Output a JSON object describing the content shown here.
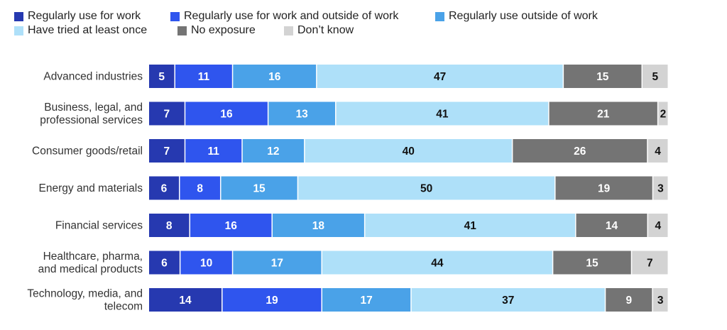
{
  "chart_data": {
    "type": "bar",
    "orientation": "horizontal",
    "stacked": true,
    "legend_position": "top-left",
    "categories": [
      "Advanced industries",
      "Business, legal, and\nprofessional services",
      "Consumer goods/retail",
      "Energy and materials",
      "Financial services",
      "Healthcare, pharma,\nand medical products",
      "Technology, media, and\ntelecom"
    ],
    "series": [
      {
        "name": "Regularly use for work",
        "color": "#2639b0",
        "label_color": "#ffffff",
        "values": [
          5,
          7,
          7,
          6,
          8,
          6,
          14
        ]
      },
      {
        "name": "Regularly use for work and outside of work",
        "color": "#2f55ee",
        "label_color": "#ffffff",
        "values": [
          11,
          16,
          11,
          8,
          16,
          10,
          19
        ]
      },
      {
        "name": "Regularly use outside of work",
        "color": "#4aa2e8",
        "label_color": "#ffffff",
        "values": [
          16,
          13,
          12,
          15,
          18,
          17,
          17
        ]
      },
      {
        "name": "Have tried at least once",
        "color": "#aee0f9",
        "label_color": "#111111",
        "values": [
          47,
          41,
          40,
          50,
          41,
          44,
          37
        ]
      },
      {
        "name": "No exposure",
        "color": "#747474",
        "label_color": "#ffffff",
        "values": [
          15,
          21,
          26,
          19,
          14,
          15,
          9
        ]
      },
      {
        "name": "Don’t know",
        "color": "#d3d3d3",
        "label_color": "#111111",
        "values": [
          5,
          2,
          4,
          3,
          4,
          7,
          3
        ]
      }
    ]
  }
}
